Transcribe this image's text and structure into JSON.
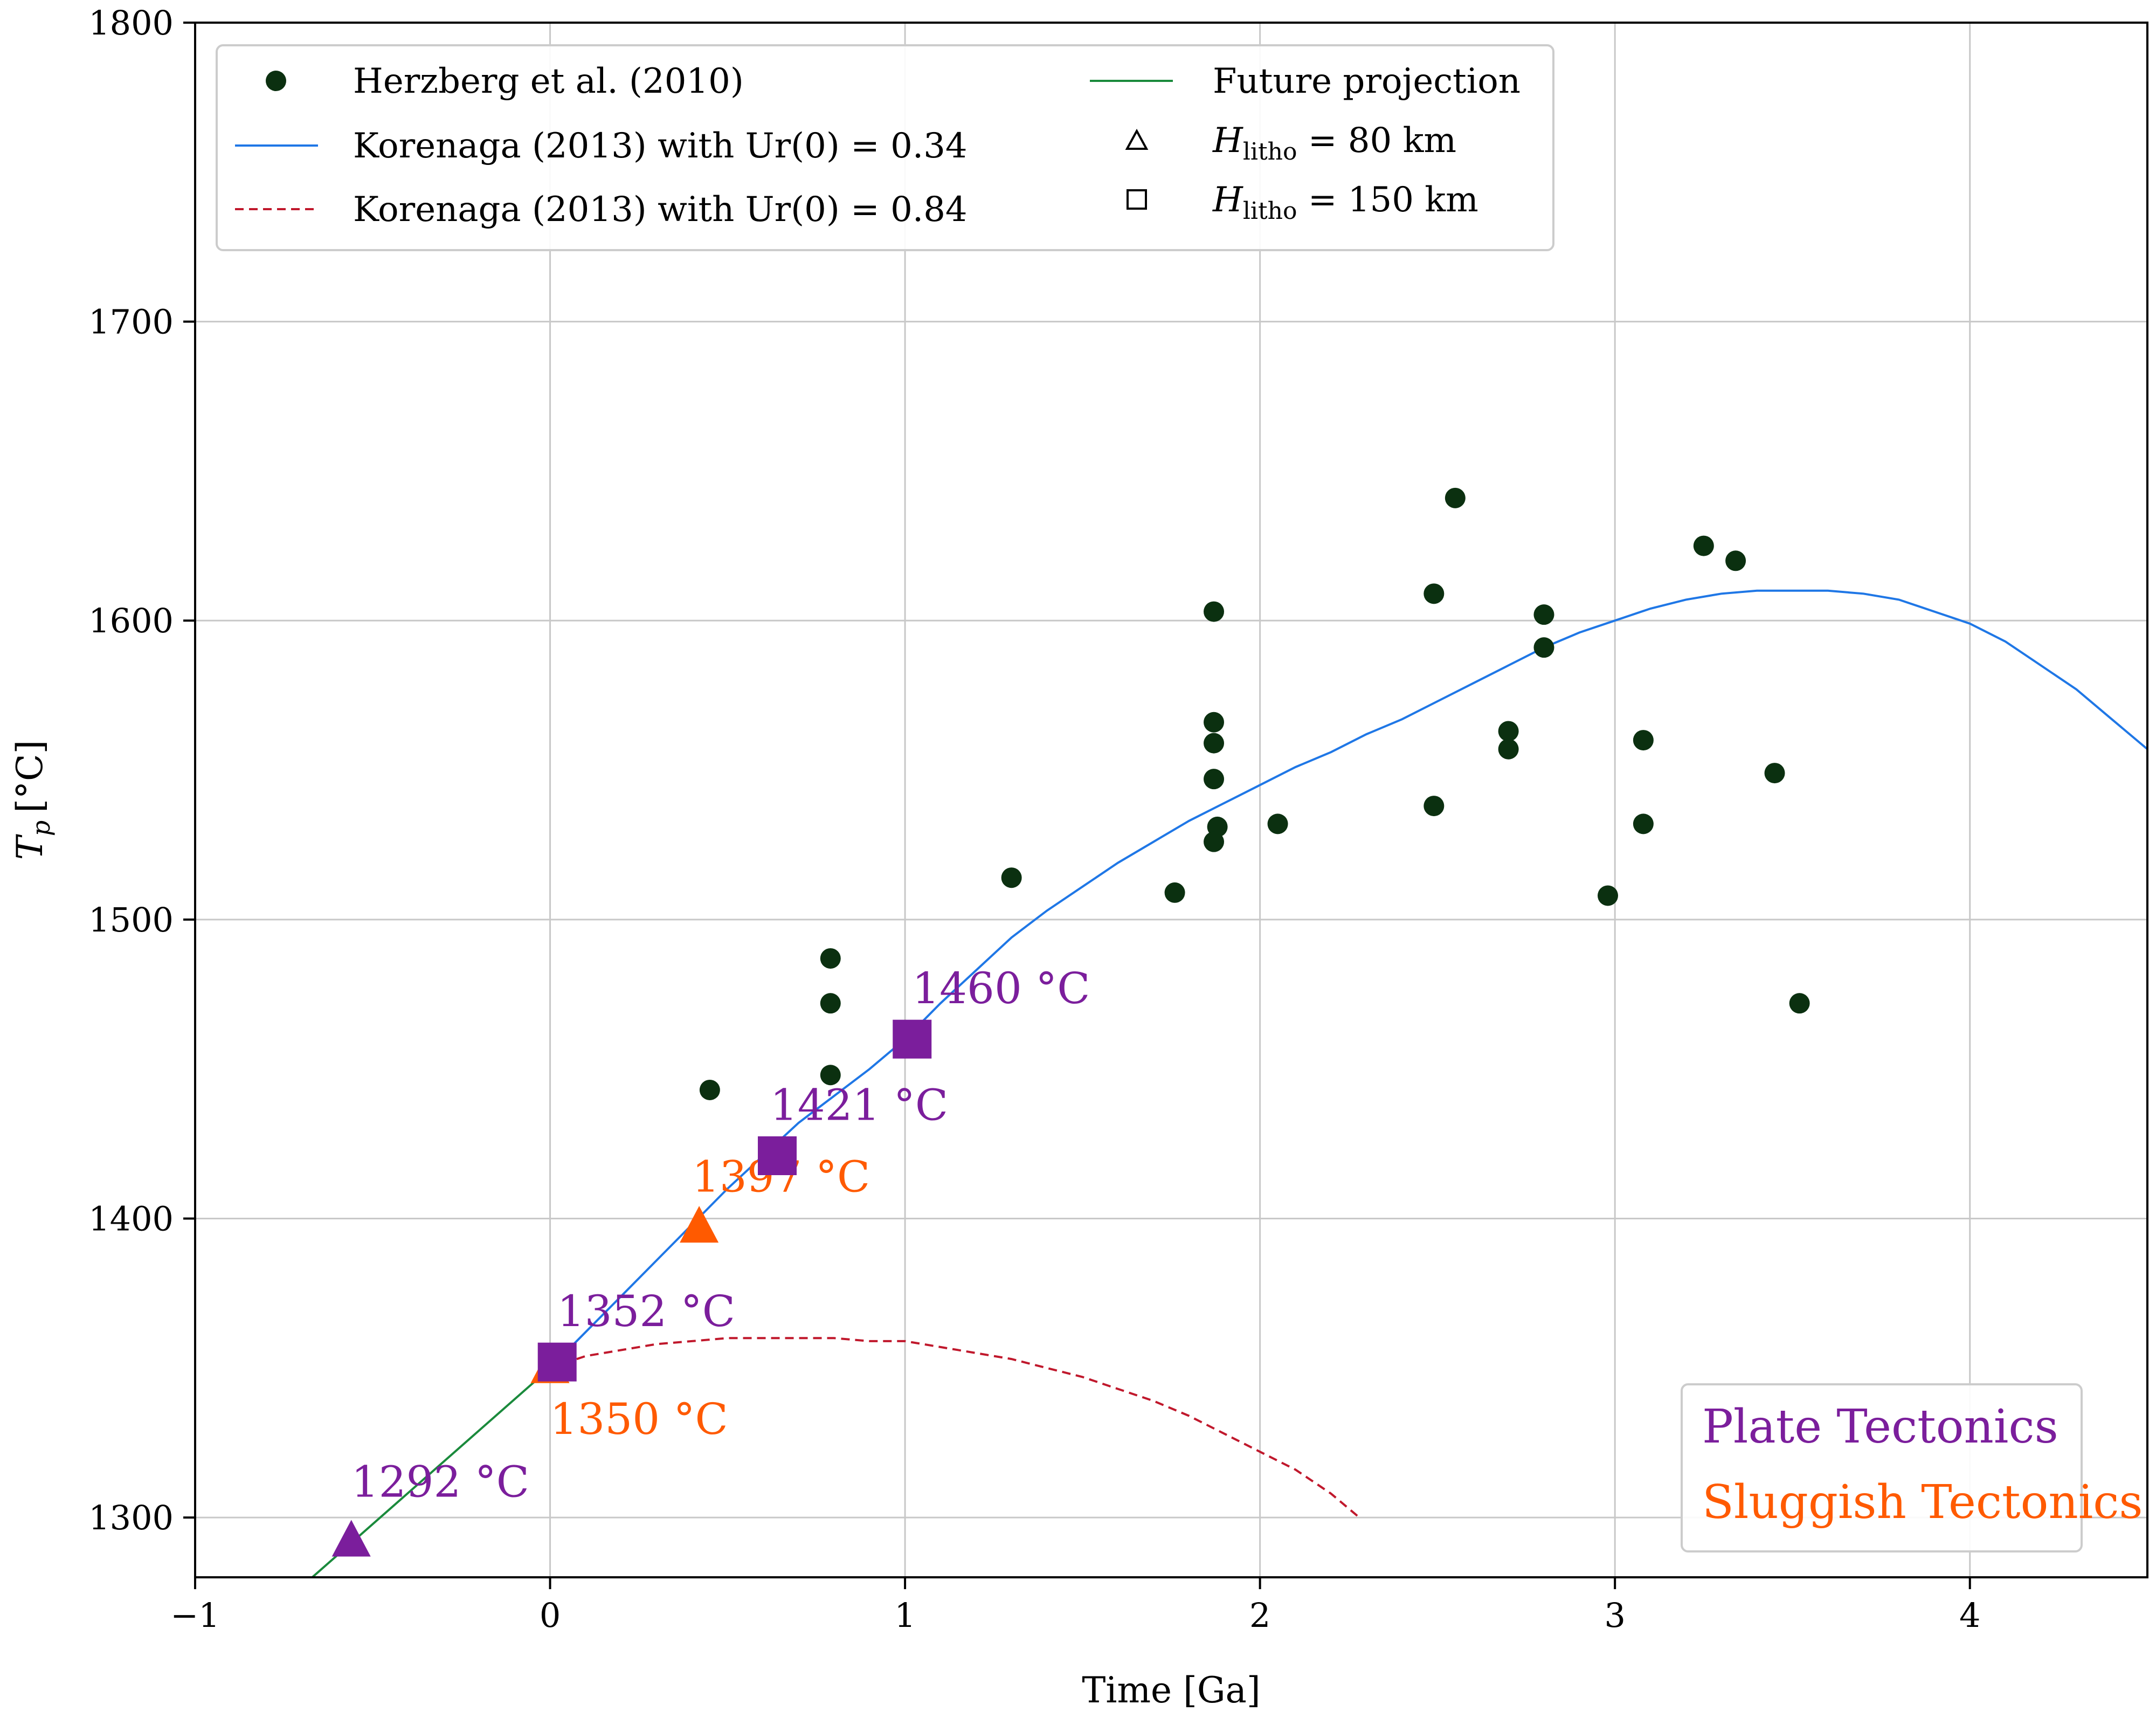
{
  "chart_data": {
    "type": "scatter",
    "xlabel": "Time [Ga]",
    "ylabel_main": "T",
    "ylabel_sub": "p",
    "ylabel_unit": "[°C]",
    "xlim": [
      -1,
      4.5
    ],
    "ylim": [
      1280,
      1800
    ],
    "x_ticks": [
      -1,
      0,
      1,
      2,
      3,
      4
    ],
    "x_tick_labels": [
      "−1",
      "0",
      "1",
      "2",
      "3",
      "4"
    ],
    "y_ticks": [
      1300,
      1400,
      1500,
      1600,
      1700,
      1800
    ],
    "y_tick_labels": [
      "1300",
      "1400",
      "1500",
      "1600",
      "1700",
      "1800"
    ],
    "grid": true,
    "legend_position": "top-left",
    "colors": {
      "points": "#0b3010",
      "blue": "#1f77e6",
      "red": "#c0182c",
      "green": "#1a8a3c",
      "plate": "#7b1e9c",
      "sluggish": "#ff5a00",
      "grid": "#c8c8c8"
    },
    "series": [
      {
        "name": "Herzberg et al. (2010)",
        "kind": "scatter",
        "points": [
          [
            0.45,
            1443
          ],
          [
            0.79,
            1448
          ],
          [
            0.79,
            1472
          ],
          [
            0.79,
            1487
          ],
          [
            1.3,
            1514
          ],
          [
            1.76,
            1509
          ],
          [
            1.87,
            1603
          ],
          [
            1.87,
            1566
          ],
          [
            1.87,
            1559
          ],
          [
            1.87,
            1547
          ],
          [
            1.88,
            1531
          ],
          [
            1.87,
            1526
          ],
          [
            2.05,
            1532
          ],
          [
            2.49,
            1609
          ],
          [
            2.55,
            1641
          ],
          [
            2.49,
            1538
          ],
          [
            2.7,
            1563
          ],
          [
            2.7,
            1557
          ],
          [
            2.8,
            1602
          ],
          [
            2.8,
            1591
          ],
          [
            2.98,
            1508
          ],
          [
            3.08,
            1560
          ],
          [
            3.08,
            1532
          ],
          [
            3.25,
            1625
          ],
          [
            3.34,
            1620
          ],
          [
            3.45,
            1549
          ],
          [
            3.52,
            1472
          ]
        ]
      },
      {
        "name": "Korenaga (2013) with Ur(0) = 0.34",
        "kind": "line",
        "points": [
          [
            0,
            1350
          ],
          [
            0.1,
            1362
          ],
          [
            0.2,
            1374
          ],
          [
            0.3,
            1386
          ],
          [
            0.4,
            1398
          ],
          [
            0.5,
            1410
          ],
          [
            0.6,
            1421
          ],
          [
            0.7,
            1432
          ],
          [
            0.8,
            1441
          ],
          [
            0.9,
            1450
          ],
          [
            1.0,
            1460
          ],
          [
            1.1,
            1472
          ],
          [
            1.2,
            1483
          ],
          [
            1.3,
            1494
          ],
          [
            1.4,
            1503
          ],
          [
            1.5,
            1511
          ],
          [
            1.6,
            1519
          ],
          [
            1.7,
            1526
          ],
          [
            1.8,
            1533
          ],
          [
            1.9,
            1539
          ],
          [
            2.0,
            1545
          ],
          [
            2.1,
            1551
          ],
          [
            2.2,
            1556
          ],
          [
            2.3,
            1562
          ],
          [
            2.4,
            1567
          ],
          [
            2.5,
            1573
          ],
          [
            2.6,
            1579
          ],
          [
            2.7,
            1585
          ],
          [
            2.8,
            1591
          ],
          [
            2.9,
            1596
          ],
          [
            3.0,
            1600
          ],
          [
            3.1,
            1604
          ],
          [
            3.2,
            1607
          ],
          [
            3.3,
            1609
          ],
          [
            3.4,
            1610
          ],
          [
            3.5,
            1610
          ],
          [
            3.6,
            1610
          ],
          [
            3.7,
            1609
          ],
          [
            3.8,
            1607
          ],
          [
            3.9,
            1603
          ],
          [
            4.0,
            1599
          ],
          [
            4.1,
            1593
          ],
          [
            4.2,
            1585
          ],
          [
            4.3,
            1577
          ],
          [
            4.4,
            1567
          ],
          [
            4.5,
            1557
          ]
        ]
      },
      {
        "name": "Korenaga (2013) with Ur(0) = 0.84",
        "kind": "dashed-line",
        "points": [
          [
            0,
            1350
          ],
          [
            0.1,
            1354
          ],
          [
            0.2,
            1356
          ],
          [
            0.3,
            1358
          ],
          [
            0.4,
            1359
          ],
          [
            0.5,
            1360
          ],
          [
            0.6,
            1360
          ],
          [
            0.7,
            1360
          ],
          [
            0.8,
            1360
          ],
          [
            0.9,
            1359
          ],
          [
            1.0,
            1359
          ],
          [
            1.1,
            1357
          ],
          [
            1.2,
            1355
          ],
          [
            1.3,
            1353
          ],
          [
            1.4,
            1350
          ],
          [
            1.5,
            1347
          ],
          [
            1.6,
            1343
          ],
          [
            1.7,
            1339
          ],
          [
            1.8,
            1334
          ],
          [
            1.9,
            1328
          ],
          [
            2.0,
            1322
          ],
          [
            2.1,
            1316
          ],
          [
            2.2,
            1308
          ],
          [
            2.28,
            1300
          ]
        ]
      },
      {
        "name": "Future projection",
        "kind": "line",
        "points": [
          [
            -0.67,
            1280
          ],
          [
            0,
            1350
          ]
        ]
      }
    ],
    "markers": [
      {
        "x": -0.56,
        "y": 1292,
        "shape": "triangle",
        "regime": "plate",
        "label": "1292 °C",
        "label_dx": 0.0,
        "label_dy": 15,
        "anchor": "start"
      },
      {
        "x": 0,
        "y": 1350,
        "shape": "triangle",
        "regime": "sluggish",
        "label": "1350 °C",
        "label_dx": 0.0,
        "label_dy": -22,
        "anchor": "start"
      },
      {
        "x": 0.02,
        "y": 1352,
        "shape": "square",
        "regime": "plate",
        "label": "1352 °C",
        "label_dx": 0.0,
        "label_dy": 12,
        "anchor": "start"
      },
      {
        "x": 0.42,
        "y": 1397,
        "shape": "triangle",
        "regime": "sluggish",
        "label": "1397 °C",
        "label_dx": -0.02,
        "label_dy": 12,
        "anchor": "start"
      },
      {
        "x": 0.64,
        "y": 1421,
        "shape": "square",
        "regime": "plate",
        "label": "1421 °C",
        "label_dx": -0.02,
        "label_dy": 12,
        "anchor": "start"
      },
      {
        "x": 1.02,
        "y": 1460,
        "shape": "square",
        "regime": "plate",
        "label": "1460 °C",
        "label_dx": 0.0,
        "label_dy": 12,
        "anchor": "start"
      }
    ],
    "legend": {
      "entries": [
        {
          "symbol": "dot",
          "label": "Herzberg et al. (2010)"
        },
        {
          "symbol": "blue-line",
          "label": "Korenaga (2013) with Ur(0) = 0.34"
        },
        {
          "symbol": "red-dash",
          "label": "Korenaga (2013) with Ur(0) = 0.84"
        },
        {
          "symbol": "green-line",
          "label": "Future projection"
        },
        {
          "symbol": "open-triangle",
          "label_main": "H",
          "label_sub": "litho",
          "label_rest": " = 80 km"
        },
        {
          "symbol": "open-square",
          "label_main": "H",
          "label_sub": "litho",
          "label_rest": " = 150 km"
        }
      ]
    },
    "regime_legend": {
      "plate": "Plate Tectonics",
      "sluggish": "Sluggish Tectonics"
    }
  }
}
